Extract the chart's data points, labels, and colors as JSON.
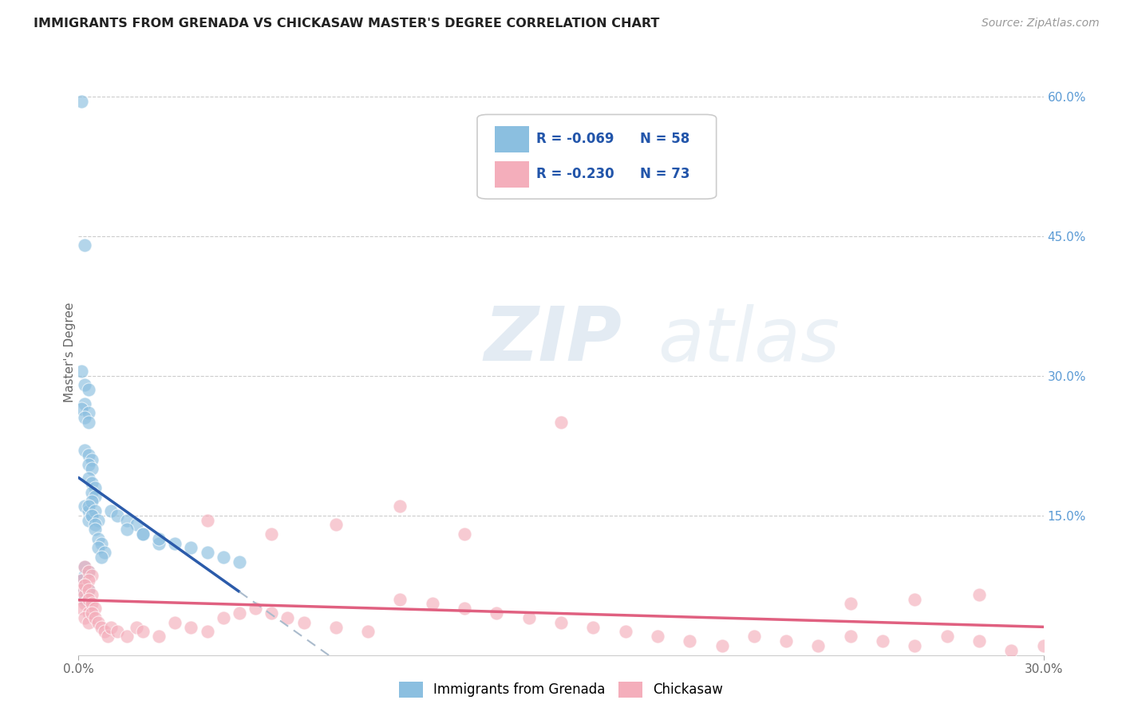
{
  "title": "IMMIGRANTS FROM GRENADA VS CHICKASAW MASTER'S DEGREE CORRELATION CHART",
  "source": "Source: ZipAtlas.com",
  "ylabel": "Master's Degree",
  "xlim": [
    0.0,
    0.3
  ],
  "ylim": [
    0.0,
    0.65
  ],
  "watermark": "ZIPatlas",
  "color_blue": "#8BBFE0",
  "color_pink": "#F4AEBB",
  "color_line_blue": "#2B5BAA",
  "color_line_pink": "#E06080",
  "color_dashed": "#AABBCC",
  "blue_x": [
    0.001,
    0.002,
    0.001,
    0.002,
    0.003,
    0.002,
    0.001,
    0.003,
    0.002,
    0.003,
    0.002,
    0.003,
    0.004,
    0.003,
    0.002,
    0.003,
    0.004,
    0.003,
    0.004,
    0.003,
    0.004,
    0.005,
    0.004,
    0.005,
    0.004,
    0.003,
    0.005,
    0.004,
    0.006,
    0.005,
    0.005,
    0.006,
    0.007,
    0.006,
    0.008,
    0.007,
    0.01,
    0.012,
    0.015,
    0.018,
    0.02,
    0.025,
    0.002,
    0.003,
    0.002,
    0.001,
    0.002,
    0.003,
    0.001,
    0.002,
    0.04,
    0.035,
    0.045,
    0.05,
    0.03,
    0.025,
    0.02,
    0.015
  ],
  "blue_y": [
    0.595,
    0.44,
    0.305,
    0.29,
    0.285,
    0.27,
    0.265,
    0.26,
    0.255,
    0.25,
    0.16,
    0.155,
    0.15,
    0.145,
    0.22,
    0.215,
    0.21,
    0.205,
    0.2,
    0.19,
    0.185,
    0.18,
    0.175,
    0.17,
    0.165,
    0.16,
    0.155,
    0.15,
    0.145,
    0.14,
    0.135,
    0.125,
    0.12,
    0.115,
    0.11,
    0.105,
    0.155,
    0.15,
    0.145,
    0.14,
    0.13,
    0.12,
    0.095,
    0.09,
    0.085,
    0.08,
    0.075,
    0.07,
    0.065,
    0.06,
    0.11,
    0.115,
    0.105,
    0.1,
    0.12,
    0.125,
    0.13,
    0.135
  ],
  "pink_x": [
    0.001,
    0.002,
    0.001,
    0.002,
    0.003,
    0.002,
    0.001,
    0.003,
    0.002,
    0.003,
    0.002,
    0.003,
    0.004,
    0.003,
    0.002,
    0.003,
    0.004,
    0.003,
    0.004,
    0.005,
    0.004,
    0.005,
    0.006,
    0.007,
    0.008,
    0.009,
    0.01,
    0.012,
    0.015,
    0.018,
    0.02,
    0.025,
    0.03,
    0.035,
    0.04,
    0.045,
    0.05,
    0.055,
    0.06,
    0.065,
    0.07,
    0.08,
    0.09,
    0.1,
    0.11,
    0.12,
    0.13,
    0.14,
    0.15,
    0.16,
    0.17,
    0.18,
    0.19,
    0.2,
    0.21,
    0.22,
    0.23,
    0.24,
    0.25,
    0.26,
    0.27,
    0.28,
    0.29,
    0.15,
    0.12,
    0.1,
    0.08,
    0.06,
    0.04,
    0.28,
    0.26,
    0.24,
    0.3
  ],
  "pink_y": [
    0.08,
    0.075,
    0.07,
    0.065,
    0.06,
    0.055,
    0.05,
    0.045,
    0.04,
    0.035,
    0.095,
    0.09,
    0.085,
    0.08,
    0.075,
    0.07,
    0.065,
    0.06,
    0.055,
    0.05,
    0.045,
    0.04,
    0.035,
    0.03,
    0.025,
    0.02,
    0.03,
    0.025,
    0.02,
    0.03,
    0.025,
    0.02,
    0.035,
    0.03,
    0.025,
    0.04,
    0.045,
    0.05,
    0.045,
    0.04,
    0.035,
    0.03,
    0.025,
    0.06,
    0.055,
    0.05,
    0.045,
    0.04,
    0.035,
    0.03,
    0.025,
    0.02,
    0.015,
    0.01,
    0.02,
    0.015,
    0.01,
    0.02,
    0.015,
    0.01,
    0.02,
    0.015,
    0.005,
    0.25,
    0.13,
    0.16,
    0.14,
    0.13,
    0.145,
    0.065,
    0.06,
    0.055,
    0.01
  ],
  "legend_entries": [
    {
      "r": "R = -0.069",
      "n": "N = 58",
      "color": "#8BBFE0"
    },
    {
      "r": "R = -0.230",
      "n": "N = 73",
      "color": "#F4AEBB"
    }
  ]
}
